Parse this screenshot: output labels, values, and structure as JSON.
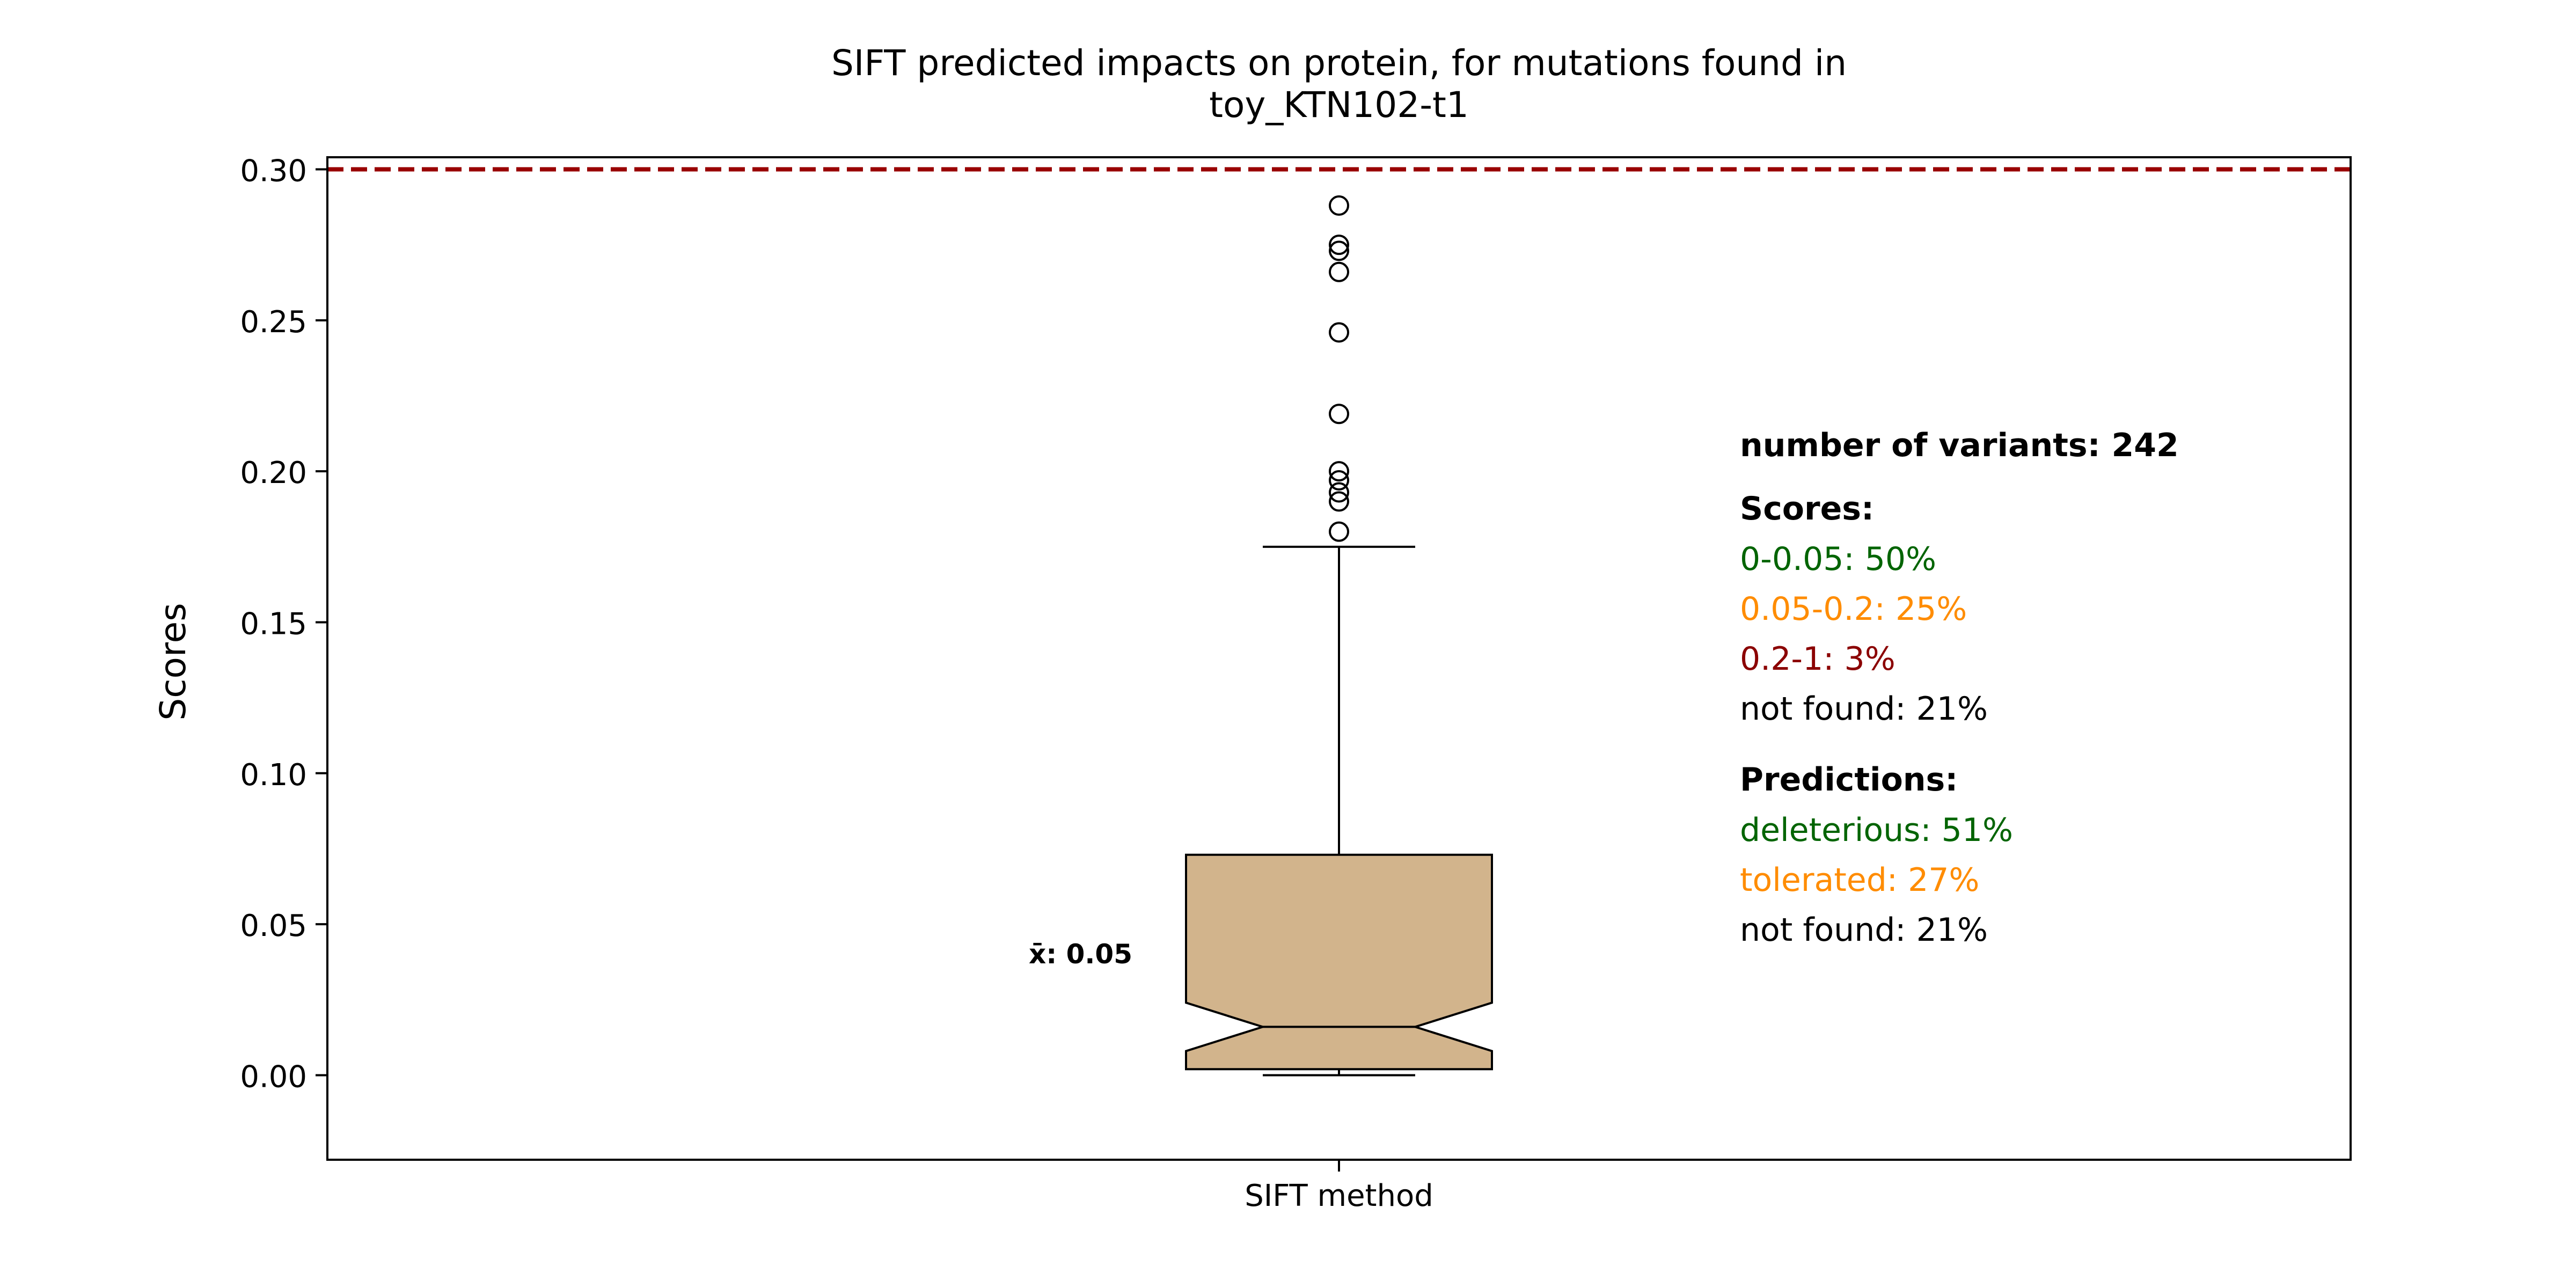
{
  "chart_data": {
    "type": "boxplot",
    "title": "SIFT predicted impacts on protein, for mutations found in",
    "title_line2": "toy_KTN102-t1",
    "ylabel": "Scores",
    "xlabel": "",
    "categories": [
      "SIFT method"
    ],
    "ylim": [
      -0.028,
      0.304
    ],
    "yticks": [
      {
        "value": 0.0,
        "label": "0.00"
      },
      {
        "value": 0.05,
        "label": "0.05"
      },
      {
        "value": 0.1,
        "label": "0.10"
      },
      {
        "value": 0.15,
        "label": "0.15"
      },
      {
        "value": 0.2,
        "label": "0.20"
      },
      {
        "value": 0.25,
        "label": "0.25"
      },
      {
        "value": 0.3,
        "label": "0.30"
      }
    ],
    "grid": false,
    "box": {
      "whisker_low": 0.0,
      "q1": 0.002,
      "notch_low": 0.008,
      "median": 0.016,
      "notch_high": 0.024,
      "q3": 0.073,
      "whisker_high": 0.175,
      "fill": "#d2b48c",
      "outliers": [
        0.288,
        0.275,
        0.273,
        0.266,
        0.246,
        0.219,
        0.2,
        0.197,
        0.193,
        0.19,
        0.18
      ]
    },
    "threshold_line": {
      "value": 0.3,
      "color": "#990000",
      "style": "dashed"
    },
    "mean_label": "x̄: 0.05",
    "annotations": {
      "variants": "number of variants: 242",
      "scores_header": "Scores:",
      "scores": [
        {
          "text": "0-0.05: 50%",
          "color": "#006400"
        },
        {
          "text": "0.05-0.2: 25%",
          "color": "#ff8c00"
        },
        {
          "text": "0.2-1: 3%",
          "color": "#8b0000"
        },
        {
          "text": "not found: 21%",
          "color": "#000000"
        }
      ],
      "predictions_header": "Predictions:",
      "predictions": [
        {
          "text": "deleterious: 51%",
          "color": "#006400"
        },
        {
          "text": "tolerated: 27%",
          "color": "#ff8c00"
        },
        {
          "text": "not found: 21%",
          "color": "#000000"
        }
      ]
    }
  }
}
